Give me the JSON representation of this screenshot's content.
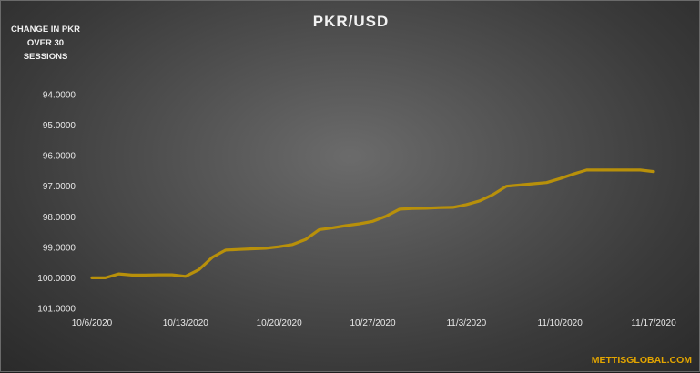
{
  "chart_data": {
    "type": "line",
    "title": "PKR/USD",
    "annotation": "CHANGE IN PKR OVER 30 SESSIONS",
    "watermark": "METTISGLOBAL.COM",
    "y_axis": {
      "inverted": true,
      "ylim": [
        94,
        101
      ],
      "ticks": [
        "94.0000",
        "95.0000",
        "96.0000",
        "97.0000",
        "98.0000",
        "99.0000",
        "100.0000",
        "101.0000"
      ]
    },
    "x_axis": {
      "type": "date",
      "range": [
        "10/6/2020",
        "11/17/2020"
      ],
      "ticks": [
        "10/6/2020",
        "10/13/2020",
        "10/20/2020",
        "10/27/2020",
        "11/3/2020",
        "11/10/2020",
        "11/17/2020"
      ]
    },
    "grid": false,
    "colors": {
      "line": "#b8900a"
    },
    "series": [
      {
        "x": [
          "10/6/2020",
          "10/7/2020",
          "10/8/2020",
          "10/9/2020",
          "10/10/2020",
          "10/11/2020",
          "10/12/2020",
          "10/13/2020",
          "10/14/2020",
          "10/15/2020",
          "10/16/2020",
          "10/17/2020",
          "10/18/2020",
          "10/19/2020",
          "10/20/2020",
          "10/21/2020",
          "10/22/2020",
          "10/23/2020",
          "10/24/2020",
          "10/25/2020",
          "10/26/2020",
          "10/27/2020",
          "10/28/2020",
          "10/29/2020",
          "10/30/2020",
          "10/31/2020",
          "11/1/2020",
          "11/2/2020",
          "11/3/2020",
          "11/4/2020",
          "11/5/2020",
          "11/6/2020",
          "11/7/2020",
          "11/8/2020",
          "11/9/2020",
          "11/10/2020",
          "11/11/2020",
          "11/12/2020",
          "11/13/2020",
          "11/14/2020",
          "11/15/2020",
          "11/16/2020",
          "11/17/2020"
        ],
        "values": [
          100.0,
          100.0,
          99.87,
          99.91,
          99.91,
          99.9,
          99.9,
          99.95,
          99.73,
          99.33,
          99.09,
          99.07,
          99.05,
          99.03,
          98.98,
          98.91,
          98.74,
          98.42,
          98.36,
          98.29,
          98.23,
          98.15,
          97.98,
          97.75,
          97.73,
          97.72,
          97.7,
          97.69,
          97.6,
          97.48,
          97.27,
          97.0,
          96.96,
          96.92,
          96.88,
          96.75,
          96.6,
          96.47,
          96.47,
          96.47,
          96.47,
          96.47,
          96.52
        ]
      }
    ]
  }
}
